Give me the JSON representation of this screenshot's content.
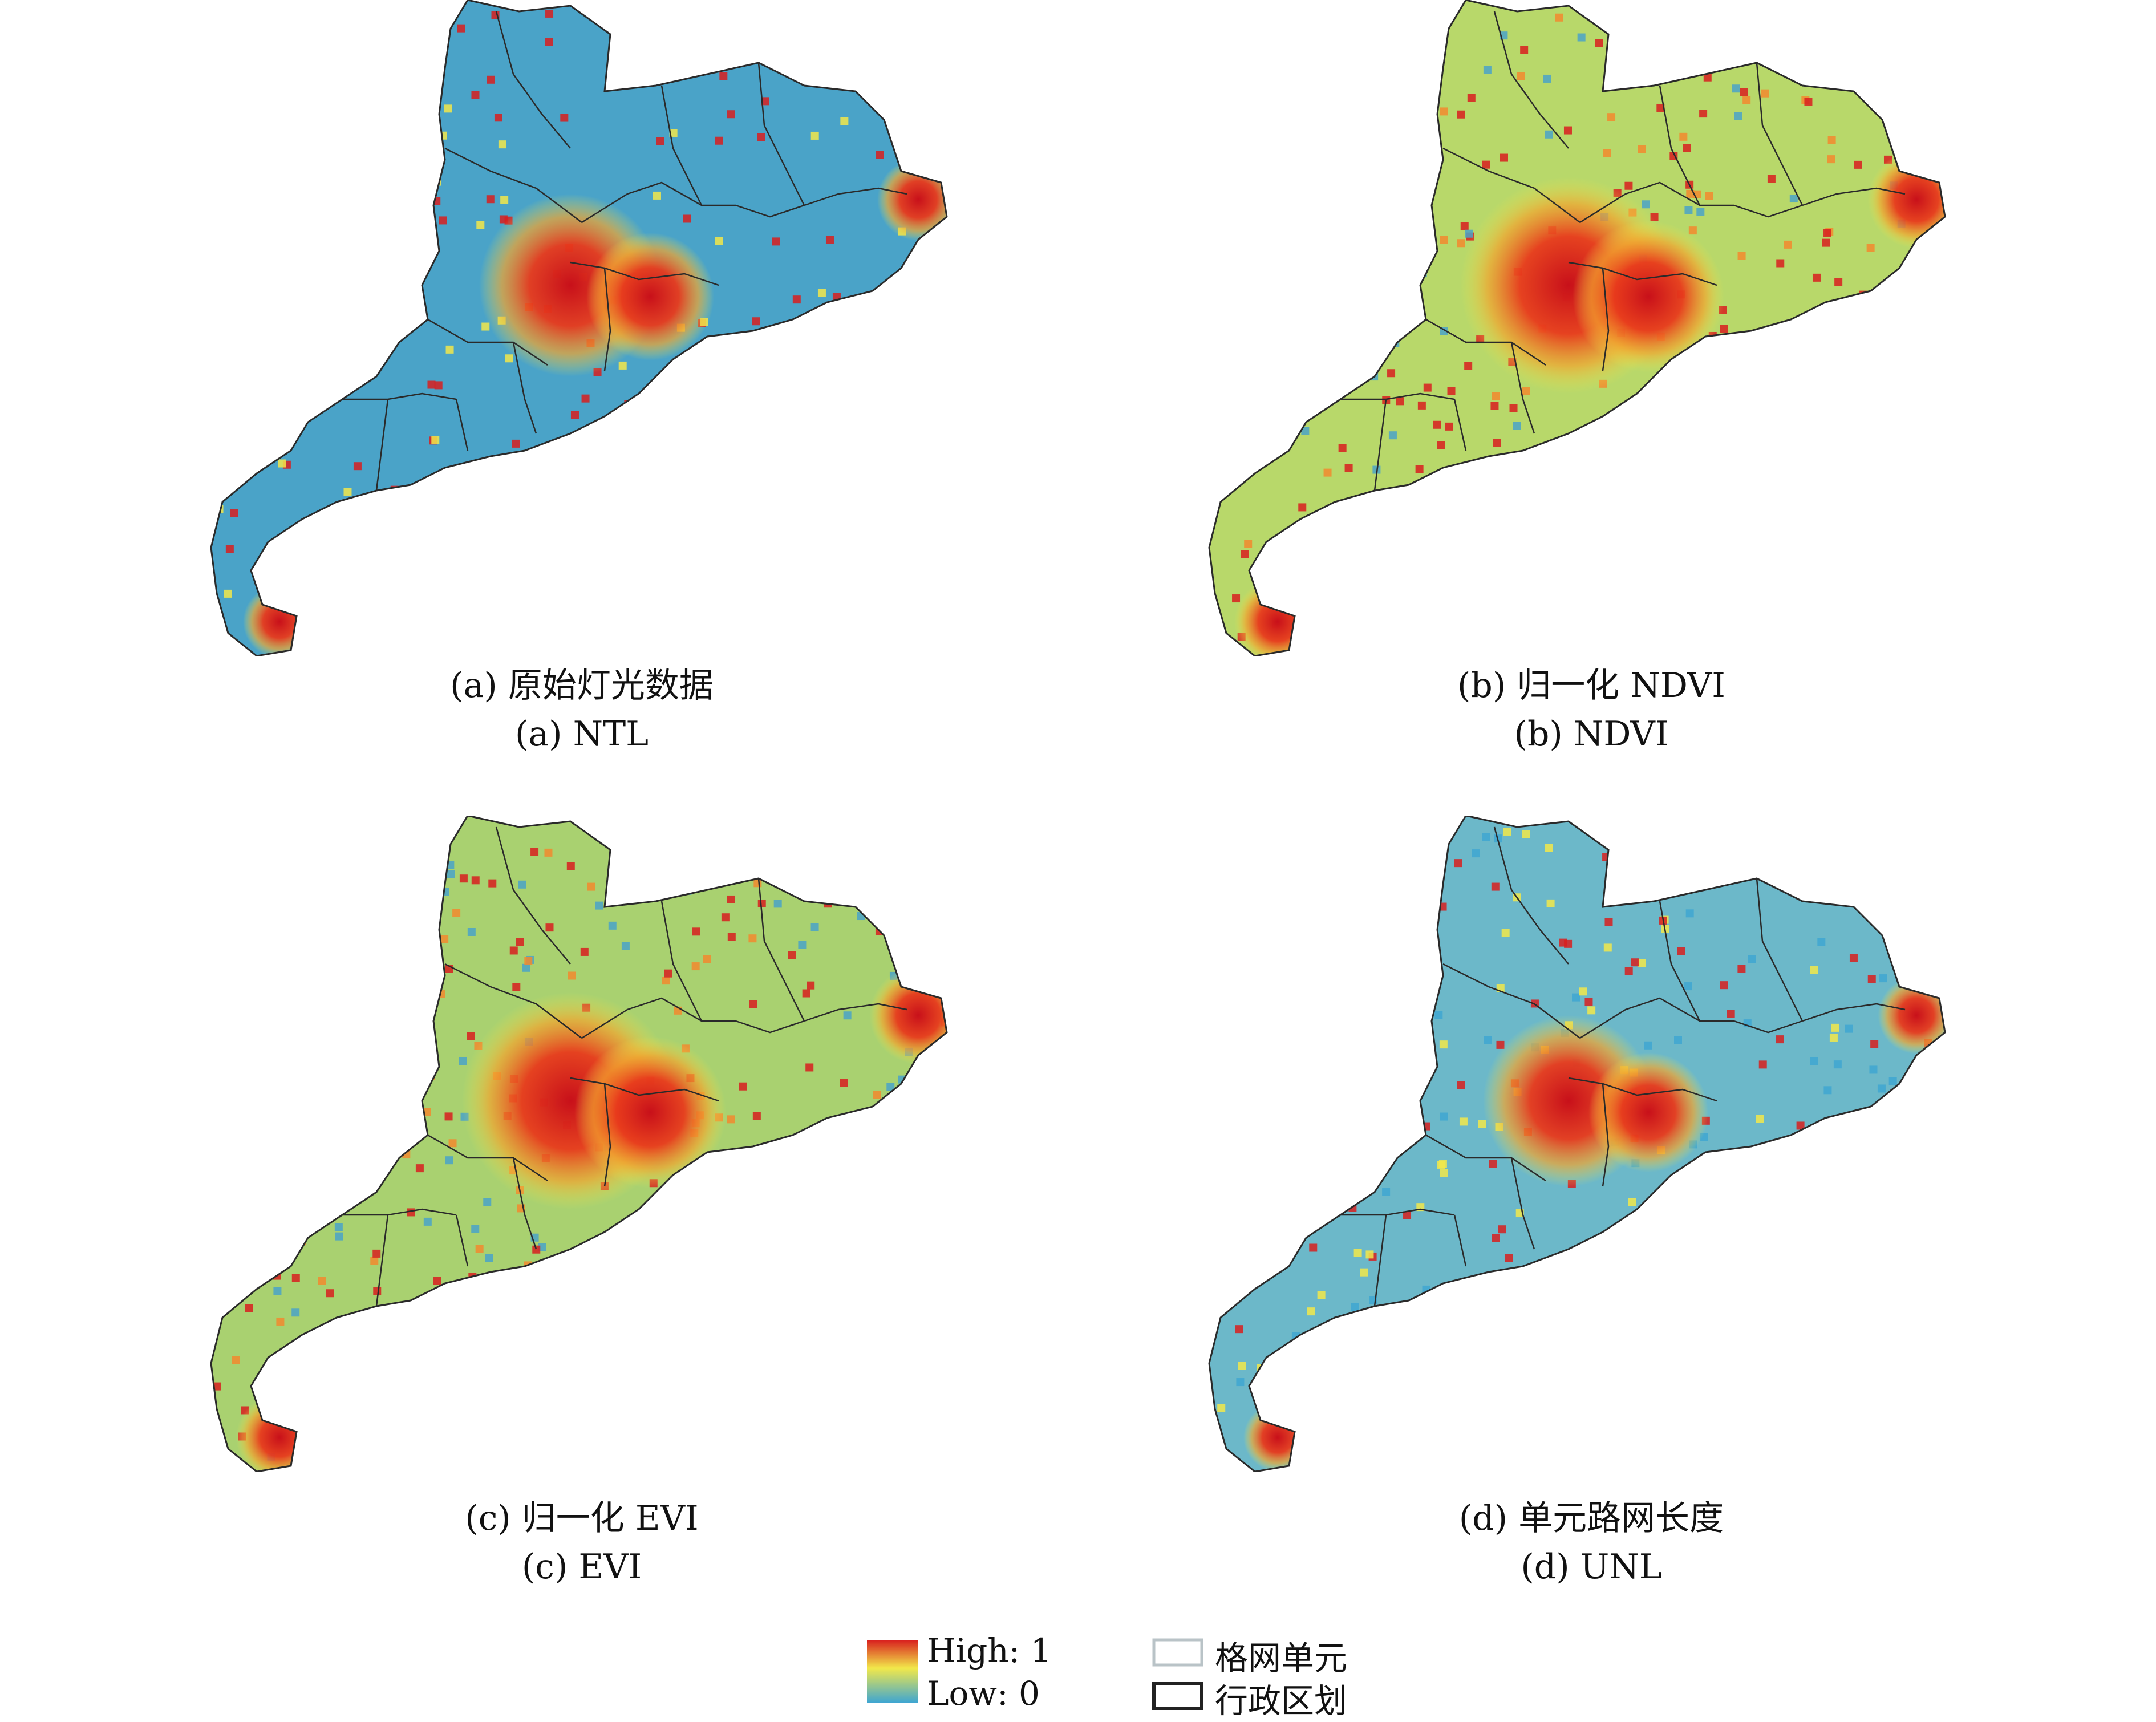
{
  "panels": [
    {
      "id": "a",
      "caption_cn": "(a) 原始灯光数据",
      "caption_en": "(a) NTL",
      "base_color": "#4aa3c8"
    },
    {
      "id": "b",
      "caption_cn": "(b) 归一化 NDVI",
      "caption_en": "(b) NDVI",
      "base_color": "#b8d86a"
    },
    {
      "id": "c",
      "caption_cn": "(c) 归一化 EVI",
      "caption_en": "(c) EVI",
      "base_color": "#a9d170"
    },
    {
      "id": "d",
      "caption_cn": "(d) 单元路网长度",
      "caption_en": "(d) UNL",
      "base_color": "#6cb8c9"
    }
  ],
  "legend": {
    "high_label": "High: 1",
    "low_label": "Low: 0",
    "grid_label": "格网单元",
    "admin_label": "行政区划",
    "colors": {
      "high": "#d81e1e",
      "mid": "#f2e84a",
      "low": "#3fa6d1",
      "grid": "#b9c3c7",
      "admin": "#222222"
    }
  }
}
